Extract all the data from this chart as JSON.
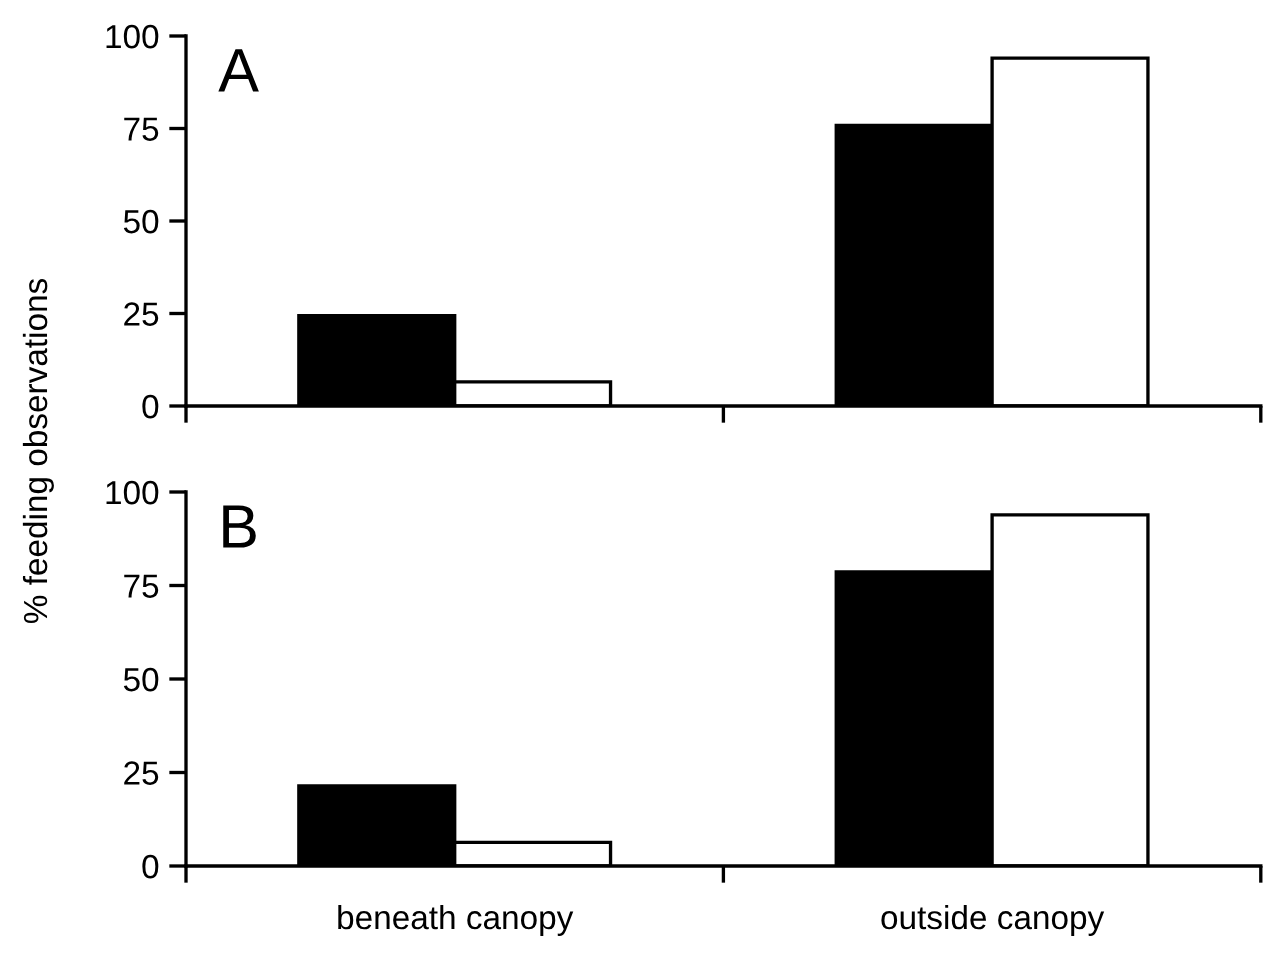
{
  "chart_data": [
    {
      "type": "bar",
      "ylabel": "% feeding observations",
      "annotations": [
        "A"
      ],
      "categories": [
        null,
        null
      ],
      "tick_labels": "y",
      "series": [
        {
          "color": "#000000",
          "values": [
            24.4,
            75.8
          ]
        },
        {
          "color": "#ffffff",
          "values": [
            6.5,
            94
          ]
        }
      ],
      "ylim": [
        0,
        100
      ],
      "yticks": [
        0,
        25,
        50,
        75,
        100
      ],
      "grid": false
    },
    {
      "type": "bar",
      "annotations": [
        "B"
      ],
      "categories": [
        "beneath canopy",
        "outside canopy"
      ],
      "series": [
        {
          "color": "#000000",
          "values": [
            21.4,
            78.6
          ]
        },
        {
          "color": "#ffffff",
          "values": [
            6.3,
            93.9
          ]
        }
      ],
      "ylim": [
        0,
        100
      ],
      "yticks": [
        0,
        25,
        50,
        75,
        100
      ],
      "grid": false
    }
  ]
}
